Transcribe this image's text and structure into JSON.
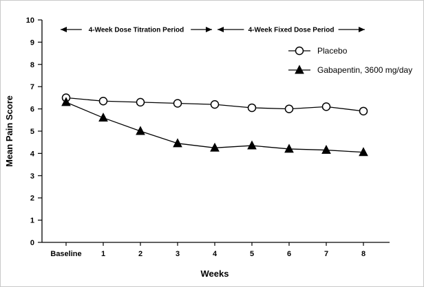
{
  "chart_data": {
    "type": "line",
    "title": "",
    "xlabel": "Weeks",
    "ylabel": "Mean Pain Score",
    "categories": [
      "Baseline",
      "1",
      "2",
      "3",
      "4",
      "5",
      "6",
      "7",
      "8"
    ],
    "series": [
      {
        "name": "Placebo",
        "marker": "open-circle",
        "values": [
          6.5,
          6.35,
          6.3,
          6.25,
          6.2,
          6.05,
          6.0,
          6.1,
          5.9
        ]
      },
      {
        "name": "Gabapentin, 3600 mg/day",
        "marker": "filled-triangle",
        "values": [
          6.3,
          5.6,
          5.0,
          4.45,
          4.25,
          4.35,
          4.2,
          4.15,
          4.05
        ]
      }
    ],
    "ylim": [
      0,
      10
    ],
    "yticks": [
      0,
      1,
      2,
      3,
      4,
      5,
      6,
      7,
      8,
      9,
      10
    ],
    "grid": false,
    "legend_position": "upper-right",
    "annotations": [
      {
        "text": "4-Week Dose Titration Period",
        "span_from": "Baseline",
        "span_to": "4"
      },
      {
        "text": "4-Week Fixed Dose Period",
        "span_from": "4",
        "span_to": "8"
      }
    ]
  },
  "colors": {
    "line": "#000000",
    "background": "#ffffff",
    "axis": "#000000"
  }
}
